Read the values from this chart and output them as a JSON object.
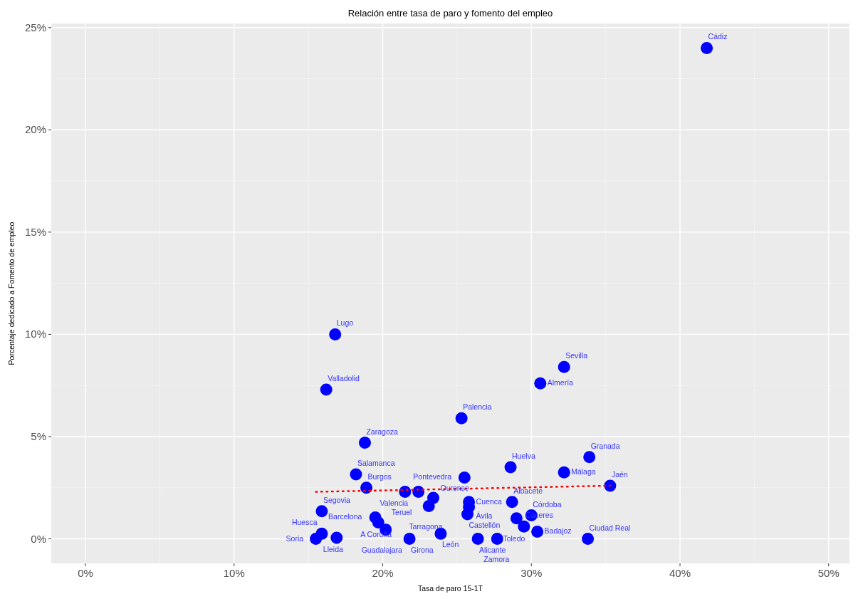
{
  "chart_data": {
    "type": "scatter",
    "title": "Relación entre tasa de paro y fomento del empleo",
    "xlabel": "Tasa de paro 15-1T",
    "ylabel": "Porcentaje dedicado a Fomento de empleo",
    "xlim": [
      -2.3,
      51.4
    ],
    "ylim": [
      -1.2,
      25.2
    ],
    "xticks": [
      {
        "value": 0,
        "label": "0%"
      },
      {
        "value": 10,
        "label": "10%"
      },
      {
        "value": 20,
        "label": "20%"
      },
      {
        "value": 30,
        "label": "30%"
      },
      {
        "value": 40,
        "label": "40%"
      },
      {
        "value": 50,
        "label": "50%"
      }
    ],
    "yticks": [
      {
        "value": 0,
        "label": "0%"
      },
      {
        "value": 5,
        "label": "5%"
      },
      {
        "value": 10,
        "label": "10%"
      },
      {
        "value": 15,
        "label": "15%"
      },
      {
        "value": 20,
        "label": "20%"
      },
      {
        "value": 25,
        "label": "25%"
      }
    ],
    "grid": true,
    "marker": "circle",
    "series": [
      {
        "type": "scatter",
        "color": "#0000ff",
        "x": [
          41.8,
          16.8,
          16.2,
          32.2,
          30.6,
          25.3,
          18.8,
          33.9,
          28.6,
          32.2,
          35.3,
          18.2,
          25.5,
          18.9,
          22.4,
          21.5,
          23.4,
          23.1,
          25.8,
          25.8,
          25.7,
          28.7,
          29.0,
          30.0,
          29.5,
          30.4,
          33.8,
          26.4,
          27.7,
          23.9,
          21.8,
          20.2,
          19.5,
          19.7,
          15.9,
          15.9,
          16.9,
          15.5
        ],
        "values": [
          24.0,
          10.0,
          7.3,
          8.4,
          7.6,
          5.9,
          4.7,
          4.0,
          3.5,
          3.25,
          2.6,
          3.15,
          3.0,
          2.5,
          2.3,
          2.3,
          2.0,
          1.6,
          1.8,
          1.55,
          1.2,
          1.8,
          1.0,
          1.15,
          0.6,
          0.35,
          0.0,
          0.0,
          0.0,
          0.25,
          0.0,
          0.45,
          1.05,
          0.8,
          1.35,
          0.25,
          0.05,
          0.0
        ]
      },
      {
        "type": "line",
        "color": "#ff0000",
        "line_style": "dotted",
        "marker": "none",
        "x": [
          15.5,
          35.3
        ],
        "values": [
          2.3,
          2.6
        ]
      }
    ],
    "annotations": [
      {
        "text": "Cádiz",
        "x": 41.8,
        "y": 24.0
      },
      {
        "text": "Lugo",
        "x": 16.8,
        "y": 10.0
      },
      {
        "text": "Valladolid",
        "x": 16.2,
        "y": 7.3
      },
      {
        "text": "Sevilla",
        "x": 32.2,
        "y": 8.4
      },
      {
        "text": "Almería",
        "x": 30.6,
        "y": 7.6
      },
      {
        "text": "Palencia",
        "x": 25.3,
        "y": 5.9
      },
      {
        "text": "Zaragoza",
        "x": 18.8,
        "y": 4.7
      },
      {
        "text": "Granada",
        "x": 33.9,
        "y": 4.0
      },
      {
        "text": "Huelva",
        "x": 28.6,
        "y": 3.5
      },
      {
        "text": "Málaga",
        "x": 32.2,
        "y": 3.25
      },
      {
        "text": "Jaén",
        "x": 35.3,
        "y": 2.6
      },
      {
        "text": "Salamanca",
        "x": 18.2,
        "y": 3.15
      },
      {
        "text": "Pontevedra",
        "x": 25.5,
        "y": 3.0
      },
      {
        "text": "Burgos",
        "x": 18.9,
        "y": 2.5
      },
      {
        "text": "Valencia",
        "x": 22.4,
        "y": 2.3
      },
      {
        "text": "Teruel",
        "x": 21.5,
        "y": 2.3
      },
      {
        "text": "Ourense",
        "x": 23.4,
        "y": 2.0
      },
      {
        "text": "Tarragona",
        "x": 23.1,
        "y": 1.6
      },
      {
        "text": "Cuenca",
        "x": 25.8,
        "y": 1.8
      },
      {
        "text": "Ávila",
        "x": 25.8,
        "y": 1.55
      },
      {
        "text": "Castellón",
        "x": 25.7,
        "y": 1.2
      },
      {
        "text": "Albacete",
        "x": 28.7,
        "y": 1.8
      },
      {
        "text": "Toledo",
        "x": 29.0,
        "y": 1.0
      },
      {
        "text": "Córdoba",
        "x": 30.0,
        "y": 1.15
      },
      {
        "text": "Cáceres",
        "x": 29.5,
        "y": 0.6
      },
      {
        "text": "Badajoz",
        "x": 30.4,
        "y": 0.35
      },
      {
        "text": "Ciudad Real",
        "x": 33.8,
        "y": 0.0
      },
      {
        "text": "Alicante",
        "x": 26.4,
        "y": 0.0
      },
      {
        "text": "Zamora",
        "x": 27.7,
        "y": 0.0
      },
      {
        "text": "León",
        "x": 23.9,
        "y": 0.25
      },
      {
        "text": "Girona",
        "x": 21.8,
        "y": 0.0
      },
      {
        "text": "Guadalajara",
        "x": 20.2,
        "y": 0.45
      },
      {
        "text": "Barcelona",
        "x": 19.5,
        "y": 1.05
      },
      {
        "text": "A Coruña",
        "x": 19.7,
        "y": 0.8
      },
      {
        "text": "Segovia",
        "x": 15.9,
        "y": 1.35
      },
      {
        "text": "Huesca",
        "x": 15.9,
        "y": 0.25
      },
      {
        "text": "Lleida",
        "x": 16.9,
        "y": 0.05
      },
      {
        "text": "Soria",
        "x": 15.5,
        "y": 0.0
      }
    ]
  }
}
